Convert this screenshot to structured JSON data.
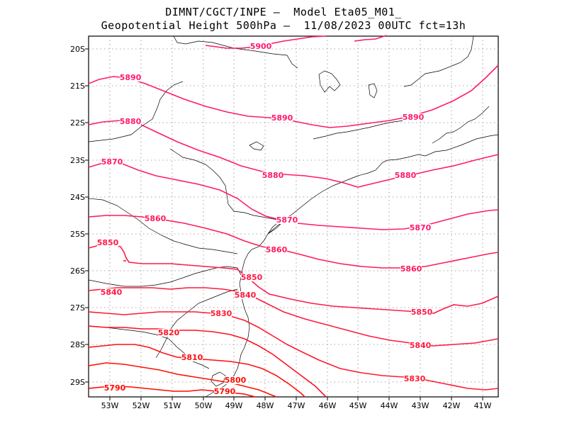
{
  "title": {
    "line1": "DIMNT/CGCT/INPE –  Model Eta05_M01_",
    "line2": "Geopotential Height 500hPa –  11/08/2023 00UTC fct=13h"
  },
  "axes": {
    "lat_labels": [
      "20S",
      "21S",
      "22S",
      "23S",
      "24S",
      "25S",
      "26S",
      "27S",
      "28S",
      "29S"
    ],
    "lon_labels": [
      "53W",
      "52W",
      "51W",
      "50W",
      "49W",
      "48W",
      "47W",
      "46W",
      "45W",
      "44W",
      "43W",
      "42W",
      "41W"
    ]
  },
  "contours": [
    {
      "value": "5900",
      "label": "5900",
      "color": "#ff1a6e"
    },
    {
      "value": "5890",
      "label": "5890",
      "color": "#ff1a6e"
    },
    {
      "value": "5880",
      "label": "5880",
      "color": "#ff1a6e"
    },
    {
      "value": "5870",
      "label": "5870",
      "color": "#ff1a6e"
    },
    {
      "value": "5860",
      "label": "5860",
      "color": "#ff1a5a"
    },
    {
      "value": "5850",
      "label": "5850",
      "color": "#ff1a4a"
    },
    {
      "value": "5840",
      "label": "5840",
      "color": "#ff1a40"
    },
    {
      "value": "5830",
      "label": "5830",
      "color": "#ff1a30"
    },
    {
      "value": "5820",
      "label": "5820",
      "color": "#ff1020"
    },
    {
      "value": "5810",
      "label": "5810",
      "color": "#ff1010"
    },
    {
      "value": "5800",
      "label": "5800",
      "color": "#ff1000"
    },
    {
      "value": "5790",
      "label": "5790",
      "color": "#ff0800"
    }
  ]
}
